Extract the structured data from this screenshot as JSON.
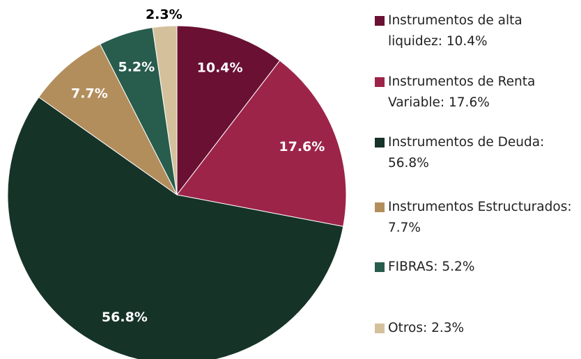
{
  "chart_data": {
    "type": "pie",
    "categories": [
      "Instrumentos de alta liquidez: 10.4%",
      "Instrumentos de Renta Variable: 17.6%",
      "Instrumentos de Deuda: 56.8%",
      "Instrumentos Estructurados: 7.7%",
      "FIBRAS: 5.2%",
      "Otros: 2.3%"
    ],
    "values": [
      10.4,
      17.6,
      56.8,
      7.7,
      5.2,
      2.3
    ],
    "value_labels": [
      "10.4%",
      "17.6%",
      "56.8%",
      "7.7%",
      "5.2%",
      "2.3%"
    ],
    "colors": [
      "#6a1133",
      "#9d2449",
      "#163328",
      "#b38e5d",
      "#285c4d",
      "#d4c19c"
    ],
    "legend": "right"
  }
}
